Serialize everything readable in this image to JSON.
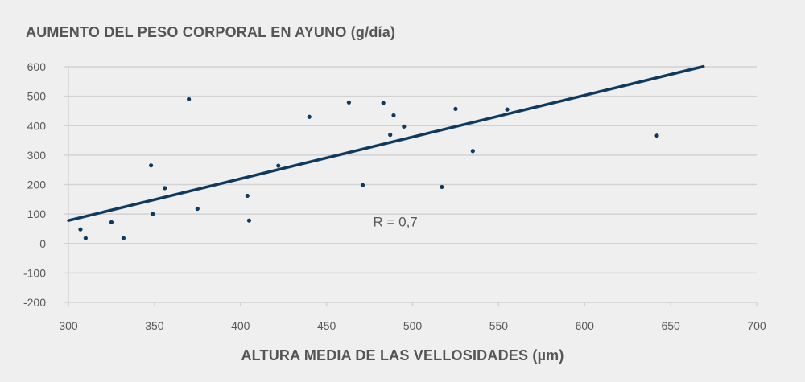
{
  "chart_data": {
    "type": "scatter",
    "title": "AUMENTO DEL PESO CORPORAL EN AYUNO (g/día)",
    "xlabel": "ALTURA MEDIA DE LAS VELLOSIDADES (µm)",
    "ylabel": "",
    "xlim": [
      300,
      700
    ],
    "ylim": [
      -200,
      600
    ],
    "xticks": [
      300,
      350,
      400,
      450,
      500,
      550,
      600,
      650,
      700
    ],
    "yticks": [
      -200,
      -100,
      0,
      100,
      200,
      300,
      400,
      500,
      600
    ],
    "grid": true,
    "colors": {
      "series": "#0e3a5f",
      "grid": "#d2d2d2",
      "text": "#595959",
      "background": "#efefef"
    },
    "points": [
      {
        "x": 307,
        "y": 48
      },
      {
        "x": 310,
        "y": 18
      },
      {
        "x": 325,
        "y": 72
      },
      {
        "x": 332,
        "y": 18
      },
      {
        "x": 348,
        "y": 265
      },
      {
        "x": 349,
        "y": 100
      },
      {
        "x": 356,
        "y": 188
      },
      {
        "x": 370,
        "y": 490
      },
      {
        "x": 375,
        "y": 118
      },
      {
        "x": 404,
        "y": 162
      },
      {
        "x": 405,
        "y": 78
      },
      {
        "x": 422,
        "y": 264
      },
      {
        "x": 440,
        "y": 430
      },
      {
        "x": 463,
        "y": 479
      },
      {
        "x": 471,
        "y": 198
      },
      {
        "x": 483,
        "y": 477
      },
      {
        "x": 487,
        "y": 369
      },
      {
        "x": 489,
        "y": 435
      },
      {
        "x": 495,
        "y": 397
      },
      {
        "x": 517,
        "y": 192
      },
      {
        "x": 525,
        "y": 457
      },
      {
        "x": 535,
        "y": 314
      },
      {
        "x": 555,
        "y": 455
      },
      {
        "x": 642,
        "y": 366
      }
    ],
    "trendline": {
      "x": [
        300,
        669
      ],
      "y": [
        78,
        601
      ]
    },
    "annotation": {
      "text": "R = 0,7",
      "x": 490,
      "y": 50
    }
  }
}
